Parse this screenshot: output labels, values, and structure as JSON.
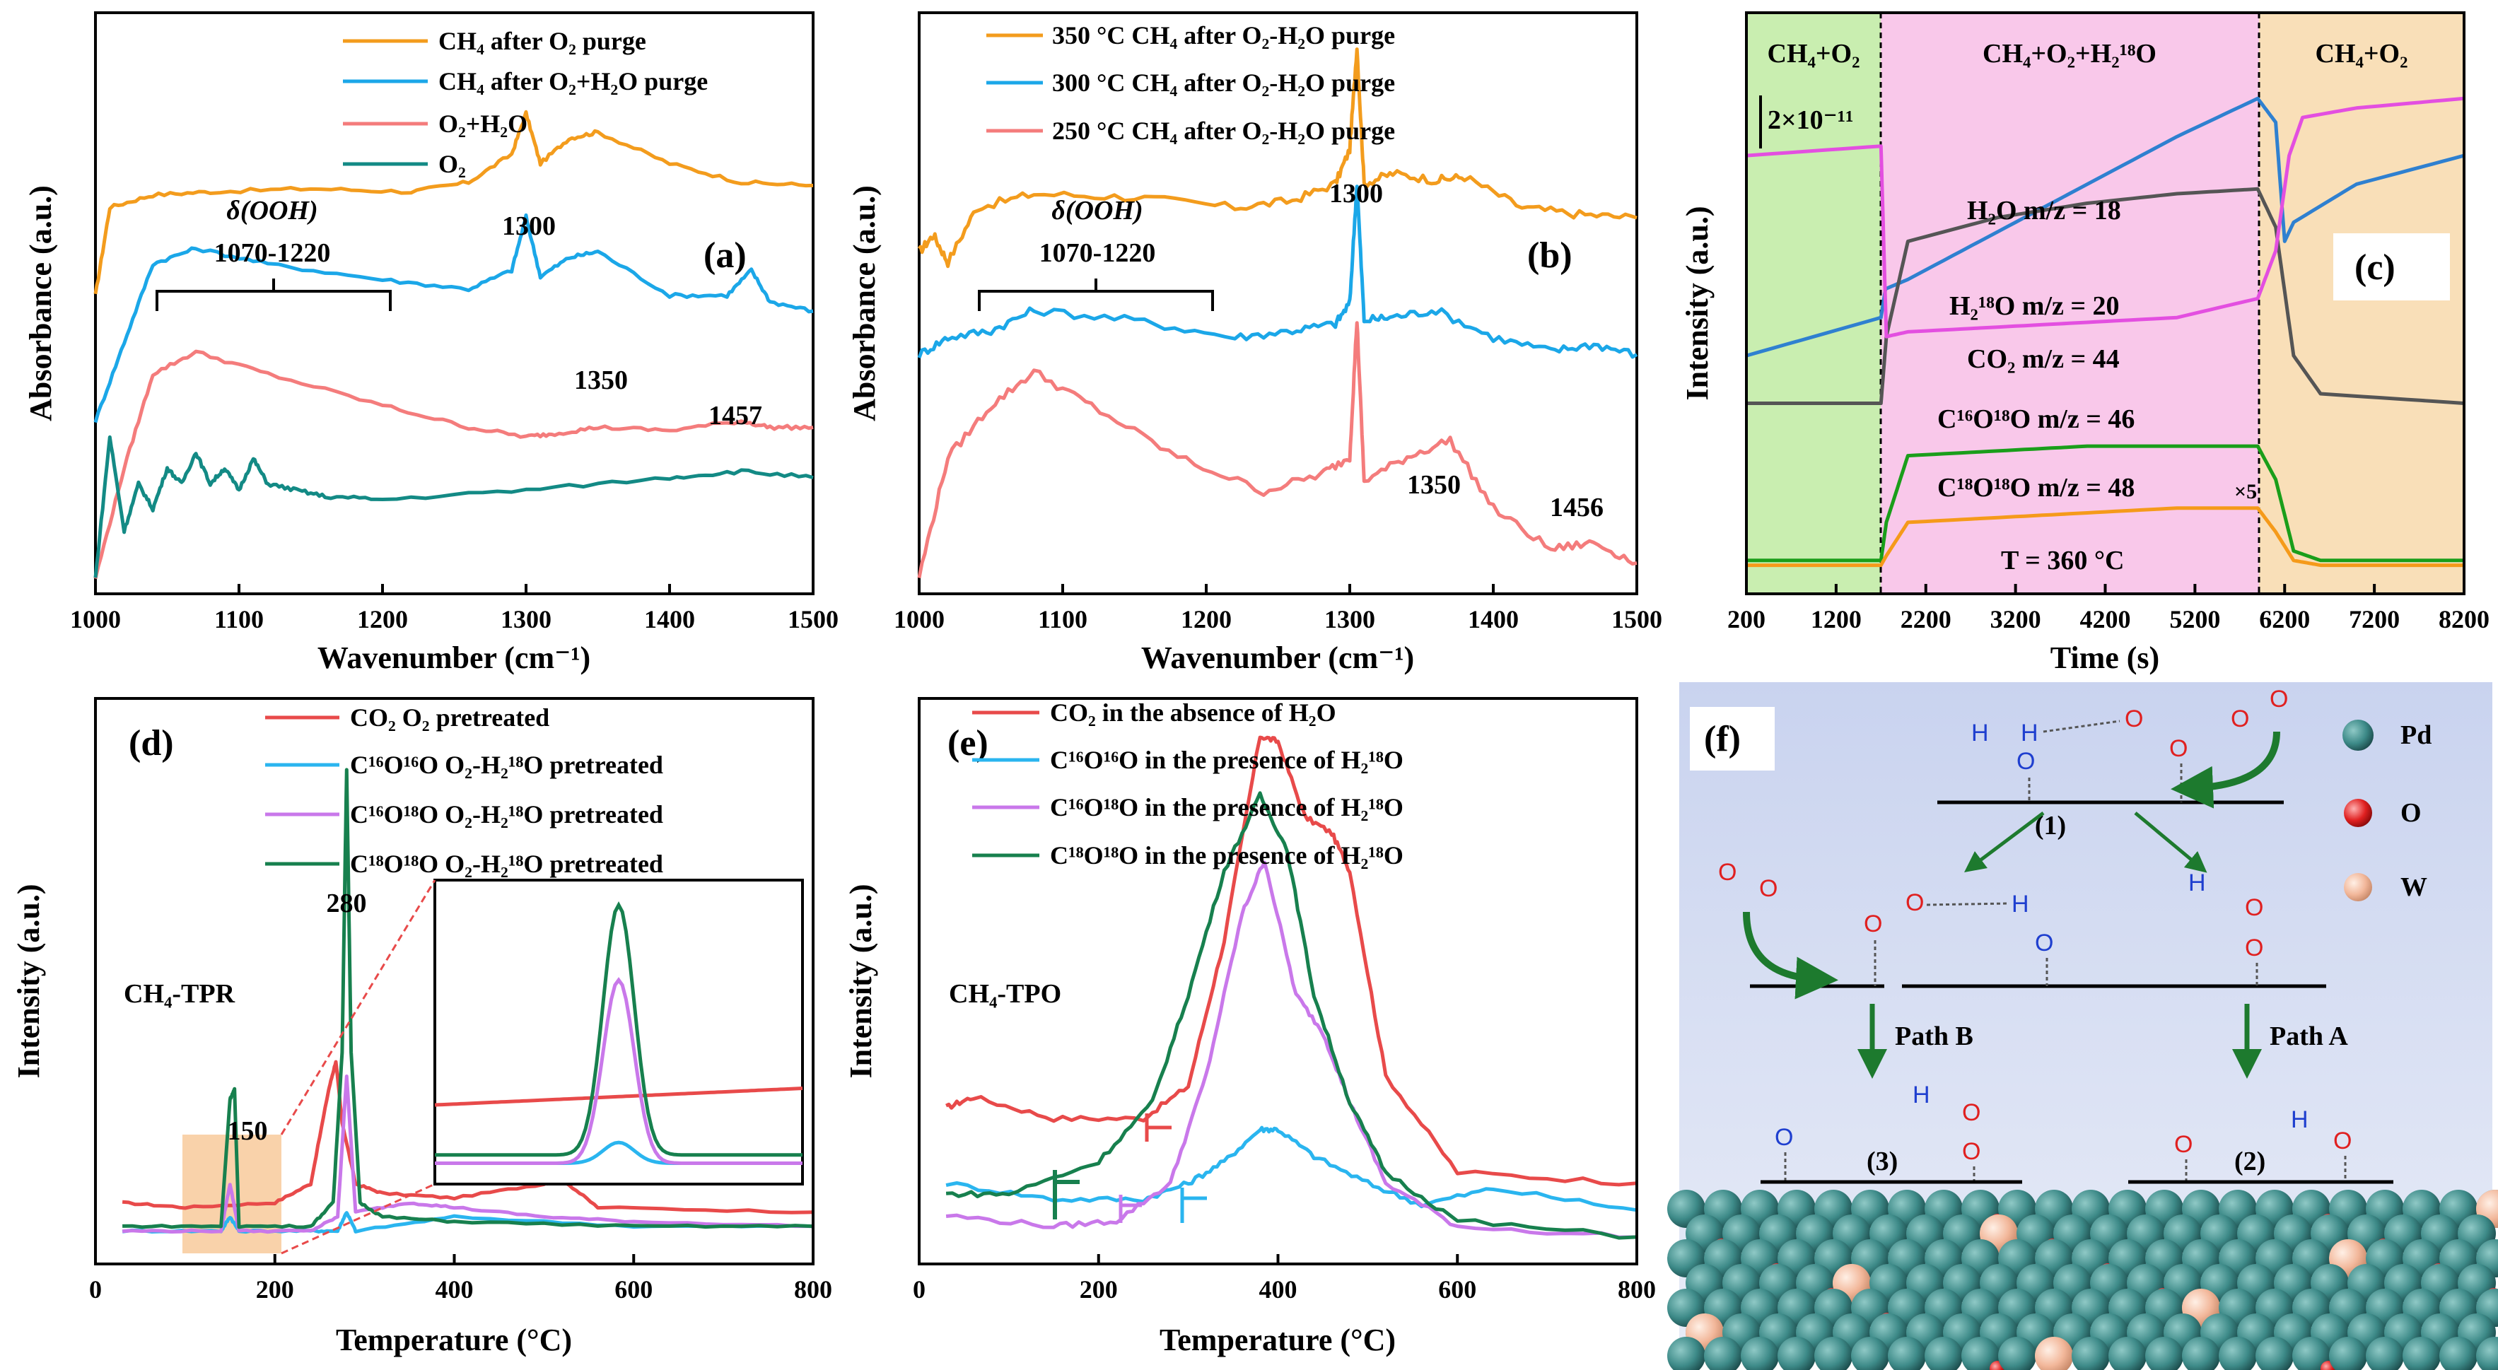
{
  "colors": {
    "orange": "#f39c1d",
    "blue": "#1ba7e8",
    "salmon": "#f47c7c",
    "teal": "#138a85",
    "green": "#1d8f4e",
    "purple": "#c57ae8",
    "magenta": "#e34fe0",
    "steel": "#2f80d0",
    "gray": "#555555",
    "green2": "#1a9e1a",
    "orange2": "#f59a1a",
    "red": "#e84a4a",
    "lightblue": "#2ab5ef",
    "violet": "#c978ea",
    "dkgreen": "#17804e"
  },
  "chart_data": [
    {
      "id": "a",
      "panel_label": "(a)",
      "type": "line",
      "xlabel": "Wavenumber (cm⁻¹)",
      "ylabel": "Absorbance (a.u.)",
      "xlim": [
        1000,
        1500
      ],
      "xticks": [
        "1000",
        "1100",
        "1200",
        "1300",
        "1400",
        "1500"
      ],
      "series": [
        {
          "name": "CH₄ after O₂ purge",
          "color": "orange",
          "x": [
            1000,
            1010,
            1040,
            1080,
            1150,
            1220,
            1260,
            1290,
            1300,
            1310,
            1330,
            1350,
            1400,
            1450,
            1500
          ],
          "y": [
            0.0,
            0.28,
            0.32,
            0.33,
            0.34,
            0.33,
            0.36,
            0.45,
            0.58,
            0.42,
            0.5,
            0.52,
            0.42,
            0.36,
            0.35
          ]
        },
        {
          "name": "CH₄ after O₂+H₂O purge",
          "color": "blue",
          "x": [
            1000,
            1020,
            1040,
            1070,
            1120,
            1200,
            1260,
            1290,
            1300,
            1310,
            1330,
            1350,
            1400,
            1440,
            1457,
            1470,
            1500
          ],
          "y": [
            -0.4,
            -0.15,
            0.1,
            0.15,
            0.1,
            0.05,
            0.02,
            0.08,
            0.25,
            0.06,
            0.12,
            0.14,
            0.0,
            0.0,
            0.08,
            -0.02,
            -0.05
          ]
        },
        {
          "name": "O₂+H₂O",
          "color": "salmon",
          "x": [
            1000,
            1020,
            1040,
            1070,
            1120,
            1200,
            1260,
            1300,
            1320,
            1350,
            1400,
            1450,
            1470,
            1500
          ],
          "y": [
            -0.9,
            -0.55,
            -0.25,
            -0.18,
            -0.25,
            -0.35,
            -0.42,
            -0.45,
            -0.44,
            -0.42,
            -0.43,
            -0.4,
            -0.42,
            -0.42
          ]
        },
        {
          "name": "O₂",
          "color": "teal",
          "x": [
            1000,
            1010,
            1020,
            1030,
            1040,
            1050,
            1060,
            1070,
            1080,
            1090,
            1100,
            1110,
            1120,
            1140,
            1160,
            1200,
            1300,
            1400,
            1450,
            1500
          ],
          "y": [
            -0.9,
            -0.45,
            -0.75,
            -0.6,
            -0.68,
            -0.55,
            -0.6,
            -0.5,
            -0.6,
            -0.55,
            -0.62,
            -0.52,
            -0.6,
            -0.62,
            -0.64,
            -0.65,
            -0.62,
            -0.58,
            -0.56,
            -0.58
          ]
        }
      ],
      "ylim": [
        -0.95,
        0.9
      ],
      "annotations": [
        "δ(OOH)",
        "1070-1220",
        "1300",
        "1350",
        "1457"
      ]
    },
    {
      "id": "b",
      "panel_label": "(b)",
      "type": "line",
      "xlabel": "Wavenumber (cm⁻¹)",
      "ylabel": "Absorbance (a.u.)",
      "xlim": [
        1000,
        1500
      ],
      "xticks": [
        "1000",
        "1100",
        "1200",
        "1300",
        "1400",
        "1500"
      ],
      "series": [
        {
          "name": "350 °C CH₄ after O₂-H₂O purge",
          "color": "orange",
          "x": [
            1000,
            1010,
            1020,
            1040,
            1080,
            1150,
            1220,
            1260,
            1290,
            1300,
            1305,
            1310,
            1330,
            1360,
            1380,
            1420,
            1460,
            1500
          ],
          "y": [
            0.25,
            0.3,
            0.22,
            0.38,
            0.42,
            0.41,
            0.38,
            0.4,
            0.45,
            0.55,
            0.85,
            0.45,
            0.48,
            0.46,
            0.47,
            0.38,
            0.36,
            0.35
          ]
        },
        {
          "name": "300 °C CH₄ after O₂-H₂O purge",
          "color": "blue",
          "x": [
            1000,
            1020,
            1050,
            1080,
            1150,
            1220,
            1260,
            1290,
            1300,
            1305,
            1310,
            1330,
            1360,
            1400,
            1440,
            1470,
            1500
          ],
          "y": [
            -0.05,
            0.0,
            0.02,
            0.08,
            0.05,
            0.0,
            0.02,
            0.04,
            0.1,
            0.45,
            0.05,
            0.06,
            0.08,
            0.0,
            -0.04,
            -0.02,
            -0.05
          ]
        },
        {
          "name": "250 °C CH₄ after O₂-H₂O purge",
          "color": "salmon",
          "x": [
            1000,
            1020,
            1050,
            1080,
            1120,
            1180,
            1240,
            1280,
            1300,
            1305,
            1310,
            1340,
            1370,
            1400,
            1440,
            1470,
            1500
          ],
          "y": [
            -0.7,
            -0.35,
            -0.2,
            -0.1,
            -0.2,
            -0.35,
            -0.45,
            -0.4,
            -0.35,
            0.05,
            -0.42,
            -0.35,
            -0.3,
            -0.5,
            -0.62,
            -0.6,
            -0.66
          ]
        }
      ],
      "ylim": [
        -0.75,
        0.95
      ],
      "annotations": [
        "δ(OOH)",
        "1070-1220",
        "1300",
        "1350",
        "1456"
      ]
    },
    {
      "id": "c",
      "panel_label": "(c)",
      "type": "line",
      "xlabel": "Time (s)",
      "ylabel": "Intensity (a.u.)",
      "xlim": [
        200,
        8200
      ],
      "xticks": [
        "200",
        "1200",
        "2200",
        "3200",
        "4200",
        "5200",
        "6200",
        "7200",
        "8200"
      ],
      "regions": [
        "CH₄+O₂",
        "CH₄+O₂+H₂¹⁸O",
        "CH₄+O₂"
      ],
      "region_bounds": [
        200,
        1700,
        5900,
        8200
      ],
      "scale_bar": "2×10⁻¹¹",
      "series": [
        {
          "name": "H₂O m/z = 18",
          "color": "steel",
          "x": [
            200,
            1700,
            1750,
            2000,
            3000,
            4000,
            5000,
            5900,
            6100,
            6200,
            6300,
            7000,
            8200
          ],
          "y": [
            0.68,
            0.76,
            0.82,
            0.84,
            0.94,
            1.04,
            1.14,
            1.22,
            1.17,
            0.92,
            0.96,
            1.04,
            1.1
          ]
        },
        {
          "name": "H₂¹⁸O m/z = 20",
          "color": "gray",
          "x": [
            200,
            1700,
            1760,
            2000,
            3000,
            4000,
            5000,
            5900,
            6100,
            6300,
            6600,
            8200
          ],
          "y": [
            0.58,
            0.58,
            0.72,
            0.92,
            0.97,
            1.0,
            1.02,
            1.03,
            0.95,
            0.68,
            0.6,
            0.58
          ]
        },
        {
          "name": "CO₂ m/z = 44",
          "color": "magenta",
          "x": [
            200,
            1700,
            1760,
            2000,
            3000,
            4000,
            5000,
            5900,
            6100,
            6250,
            6400,
            7000,
            8200
          ],
          "y": [
            1.1,
            1.12,
            0.72,
            0.73,
            0.74,
            0.75,
            0.76,
            0.8,
            0.9,
            1.1,
            1.18,
            1.2,
            1.22
          ]
        },
        {
          "name": "C¹⁶O¹⁸O m/z = 46",
          "color": "green2",
          "x": [
            200,
            1700,
            1760,
            2000,
            3000,
            4000,
            5000,
            5900,
            6100,
            6300,
            6600,
            8200
          ],
          "y": [
            0.25,
            0.25,
            0.33,
            0.47,
            0.48,
            0.49,
            0.49,
            0.49,
            0.42,
            0.27,
            0.25,
            0.25
          ]
        },
        {
          "name": "C¹⁸O¹⁸O m/z = 48",
          "color": "orange2",
          "x": [
            200,
            1700,
            1760,
            2000,
            3000,
            4000,
            5000,
            5900,
            6100,
            6300,
            6600,
            8200
          ],
          "y": [
            0.24,
            0.24,
            0.26,
            0.33,
            0.34,
            0.35,
            0.36,
            0.36,
            0.31,
            0.25,
            0.24,
            0.24
          ]
        }
      ],
      "ylim": [
        0.18,
        1.4
      ],
      "annotations": [
        "×5",
        "T = 360 °C"
      ]
    },
    {
      "id": "d",
      "panel_label": "(d)",
      "type": "line",
      "xlabel": "Temperature (°C)",
      "ylabel": "Intensity (a.u.)",
      "xlim": [
        0,
        800
      ],
      "xticks": [
        "0",
        "200",
        "400",
        "600",
        "800"
      ],
      "series": [
        {
          "name": "CO₂ O₂ pretreated",
          "color": "red",
          "x": [
            30,
            100,
            200,
            240,
            260,
            268,
            275,
            290,
            320,
            400,
            500,
            520,
            560,
            800
          ],
          "y": [
            0.08,
            0.07,
            0.08,
            0.12,
            0.32,
            0.38,
            0.25,
            0.12,
            0.1,
            0.09,
            0.12,
            0.13,
            0.07,
            0.06
          ]
        },
        {
          "name": "C¹⁶O¹⁶O O₂-H₂¹⁸O pretreated",
          "color": "lightblue",
          "x": [
            30,
            140,
            150,
            160,
            240,
            270,
            280,
            290,
            400,
            600,
            800
          ],
          "y": [
            0.02,
            0.02,
            0.05,
            0.02,
            0.02,
            0.02,
            0.06,
            0.02,
            0.05,
            0.03,
            0.03
          ]
        },
        {
          "name": "C¹⁶O¹⁸O O₂-H₂¹⁸O pretreated",
          "color": "violet",
          "x": [
            30,
            140,
            150,
            160,
            240,
            270,
            280,
            290,
            350,
            400,
            500,
            600,
            800
          ],
          "y": [
            0.02,
            0.02,
            0.12,
            0.02,
            0.02,
            0.05,
            0.35,
            0.06,
            0.08,
            0.07,
            0.05,
            0.04,
            0.03
          ]
        },
        {
          "name": "C¹⁸O¹⁸O O₂-H₂¹⁸O pretreated",
          "color": "dkgreen",
          "x": [
            30,
            140,
            150,
            155,
            160,
            240,
            265,
            275,
            280,
            285,
            295,
            320,
            400,
            600,
            800
          ],
          "y": [
            0.03,
            0.03,
            0.3,
            0.32,
            0.03,
            0.03,
            0.08,
            0.4,
            1.0,
            0.4,
            0.08,
            0.05,
            0.04,
            0.03,
            0.03
          ]
        }
      ],
      "ylim": [
        -0.05,
        1.15
      ],
      "annotations": [
        "CH₄-TPR",
        "150",
        "280"
      ]
    },
    {
      "id": "e",
      "panel_label": "(e)",
      "type": "line",
      "xlabel": "Temperature (°C)",
      "ylabel": "Intensity (a.u.)",
      "xlim": [
        0,
        800
      ],
      "xticks": [
        "0",
        "200",
        "400",
        "600",
        "800"
      ],
      "series": [
        {
          "name": "CO₂ in the absence of H₂O",
          "color": "red",
          "x": [
            30,
            60,
            150,
            250,
            300,
            340,
            380,
            400,
            430,
            460,
            480,
            520,
            600,
            800
          ],
          "y": [
            0.24,
            0.26,
            0.22,
            0.22,
            0.28,
            0.55,
            0.93,
            0.92,
            0.78,
            0.75,
            0.68,
            0.3,
            0.12,
            0.1
          ]
        },
        {
          "name": "C¹⁶O¹⁶O in the presence of H₂¹⁸O",
          "color": "lightblue",
          "x": [
            30,
            150,
            250,
            300,
            340,
            380,
            400,
            440,
            500,
            560,
            640,
            800
          ],
          "y": [
            0.1,
            0.07,
            0.07,
            0.1,
            0.14,
            0.2,
            0.2,
            0.15,
            0.1,
            0.06,
            0.09,
            0.05
          ]
        },
        {
          "name": "C¹⁶O¹⁸O in the presence of H₂¹⁸O",
          "color": "violet",
          "x": [
            30,
            150,
            220,
            280,
            320,
            360,
            385,
            420,
            450,
            480,
            520,
            600,
            800
          ],
          "y": [
            0.04,
            0.02,
            0.03,
            0.1,
            0.3,
            0.6,
            0.7,
            0.45,
            0.38,
            0.25,
            0.1,
            0.02,
            0.0
          ]
        },
        {
          "name": "C¹⁸O¹⁸O in the presence of H₂¹⁸O",
          "color": "dkgreen",
          "x": [
            30,
            100,
            200,
            260,
            300,
            340,
            380,
            410,
            440,
            480,
            520,
            600,
            800
          ],
          "y": [
            0.08,
            0.08,
            0.14,
            0.25,
            0.45,
            0.68,
            0.82,
            0.72,
            0.45,
            0.25,
            0.12,
            0.03,
            0.0
          ]
        }
      ],
      "ylim": [
        -0.05,
        1.0
      ],
      "annotations": [
        "CH₄-TPO"
      ]
    }
  ],
  "scheme": {
    "panel_label": "(f)",
    "legend": [
      {
        "label": "Pd",
        "color": "#1f6b6b"
      },
      {
        "label": "O",
        "color": "#e02020"
      },
      {
        "label": "W",
        "color": "#f2b79a"
      }
    ],
    "step_labels": [
      "(1)",
      "(2)",
      "(3)"
    ],
    "paths": [
      "Path B",
      "Path A"
    ],
    "atoms": {
      "H": "H",
      "O": "O"
    }
  }
}
